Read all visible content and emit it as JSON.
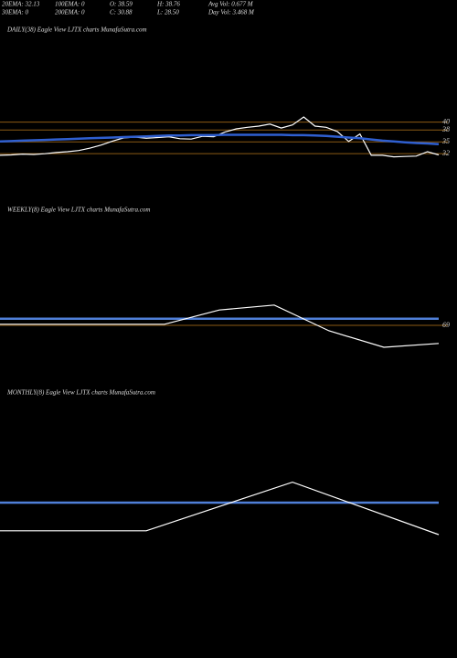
{
  "header": {
    "rows": [
      [
        "20EMA: 32.13",
        "100EMA: 0",
        "O: 38.59",
        "H: 38.76",
        "Avg Vol: 0.677 M"
      ],
      [
        "30EMA: 0",
        "200EMA: 0",
        "C: 30.88",
        "L: 28.50",
        "Day Vol: 3.468 M"
      ]
    ]
  },
  "chart_data": [
    {
      "type": "line",
      "title": "DAILY(38) Eagle  View  LJTX  charts MunafaSutra.com",
      "ylim": [
        20,
        64
      ],
      "yticks": [
        32,
        35,
        38,
        40
      ],
      "tick_color": "#8b5a14",
      "series": [
        {
          "color": "#ffffff",
          "values": [
            31.6,
            31.7,
            31.9,
            31.8,
            32.0,
            32.3,
            32.5,
            32.8,
            33.4,
            34.2,
            35.2,
            36.0,
            36.2,
            35.9,
            36.1,
            36.3,
            35.8,
            35.7,
            36.4,
            36.3,
            37.5,
            38.3,
            38.7,
            39.0,
            39.5,
            38.5,
            39.3,
            41.3,
            39.0,
            38.7,
            37.6,
            35.1,
            37.0,
            31.6,
            31.6,
            31.2,
            31.3,
            31.4,
            32.5,
            31.7
          ]
        },
        {
          "color": "#2f5fd0",
          "values": [
            35.1,
            35.2,
            35.3,
            35.4,
            35.5,
            35.6,
            35.7,
            35.8,
            35.9,
            36.0,
            36.1,
            36.2,
            36.3,
            36.4,
            36.5,
            36.6,
            36.6,
            36.7,
            36.7,
            36.7,
            36.8,
            36.8,
            36.8,
            36.8,
            36.8,
            36.8,
            36.7,
            36.7,
            36.6,
            36.5,
            36.3,
            36.1,
            35.9,
            35.6,
            35.3,
            35.1,
            34.9,
            34.7,
            34.6,
            34.4
          ]
        }
      ]
    },
    {
      "type": "line",
      "title": "WEEKLY(8) Eagle  View  LJTX  charts MunafaSutra.com",
      "ylim": [
        60,
        80
      ],
      "yticks": [
        69
      ],
      "tick_color": "#8b5a14",
      "series": [
        {
          "color": "#4f7fd8",
          "values": [
            70.2,
            70.2,
            70.2,
            70.2,
            70.2,
            70.2,
            70.2,
            70.2,
            70.2
          ]
        },
        {
          "color": "#ffffff",
          "values": [
            69.2,
            69.2,
            69.2,
            69.2,
            71.8,
            72.7,
            68.0,
            65.0,
            65.7
          ]
        }
      ]
    },
    {
      "type": "line",
      "title": "MONTHLY(8) Eagle  View  LJTX  charts MunafaSutra.com",
      "ylim": [
        0,
        100
      ],
      "yticks": [],
      "series": [
        {
          "color": "#4f7fd8",
          "values": [
            50,
            50,
            50,
            50
          ]
        },
        {
          "color": "#ffffff",
          "values": [
            28,
            28,
            66,
            25
          ]
        }
      ]
    }
  ]
}
